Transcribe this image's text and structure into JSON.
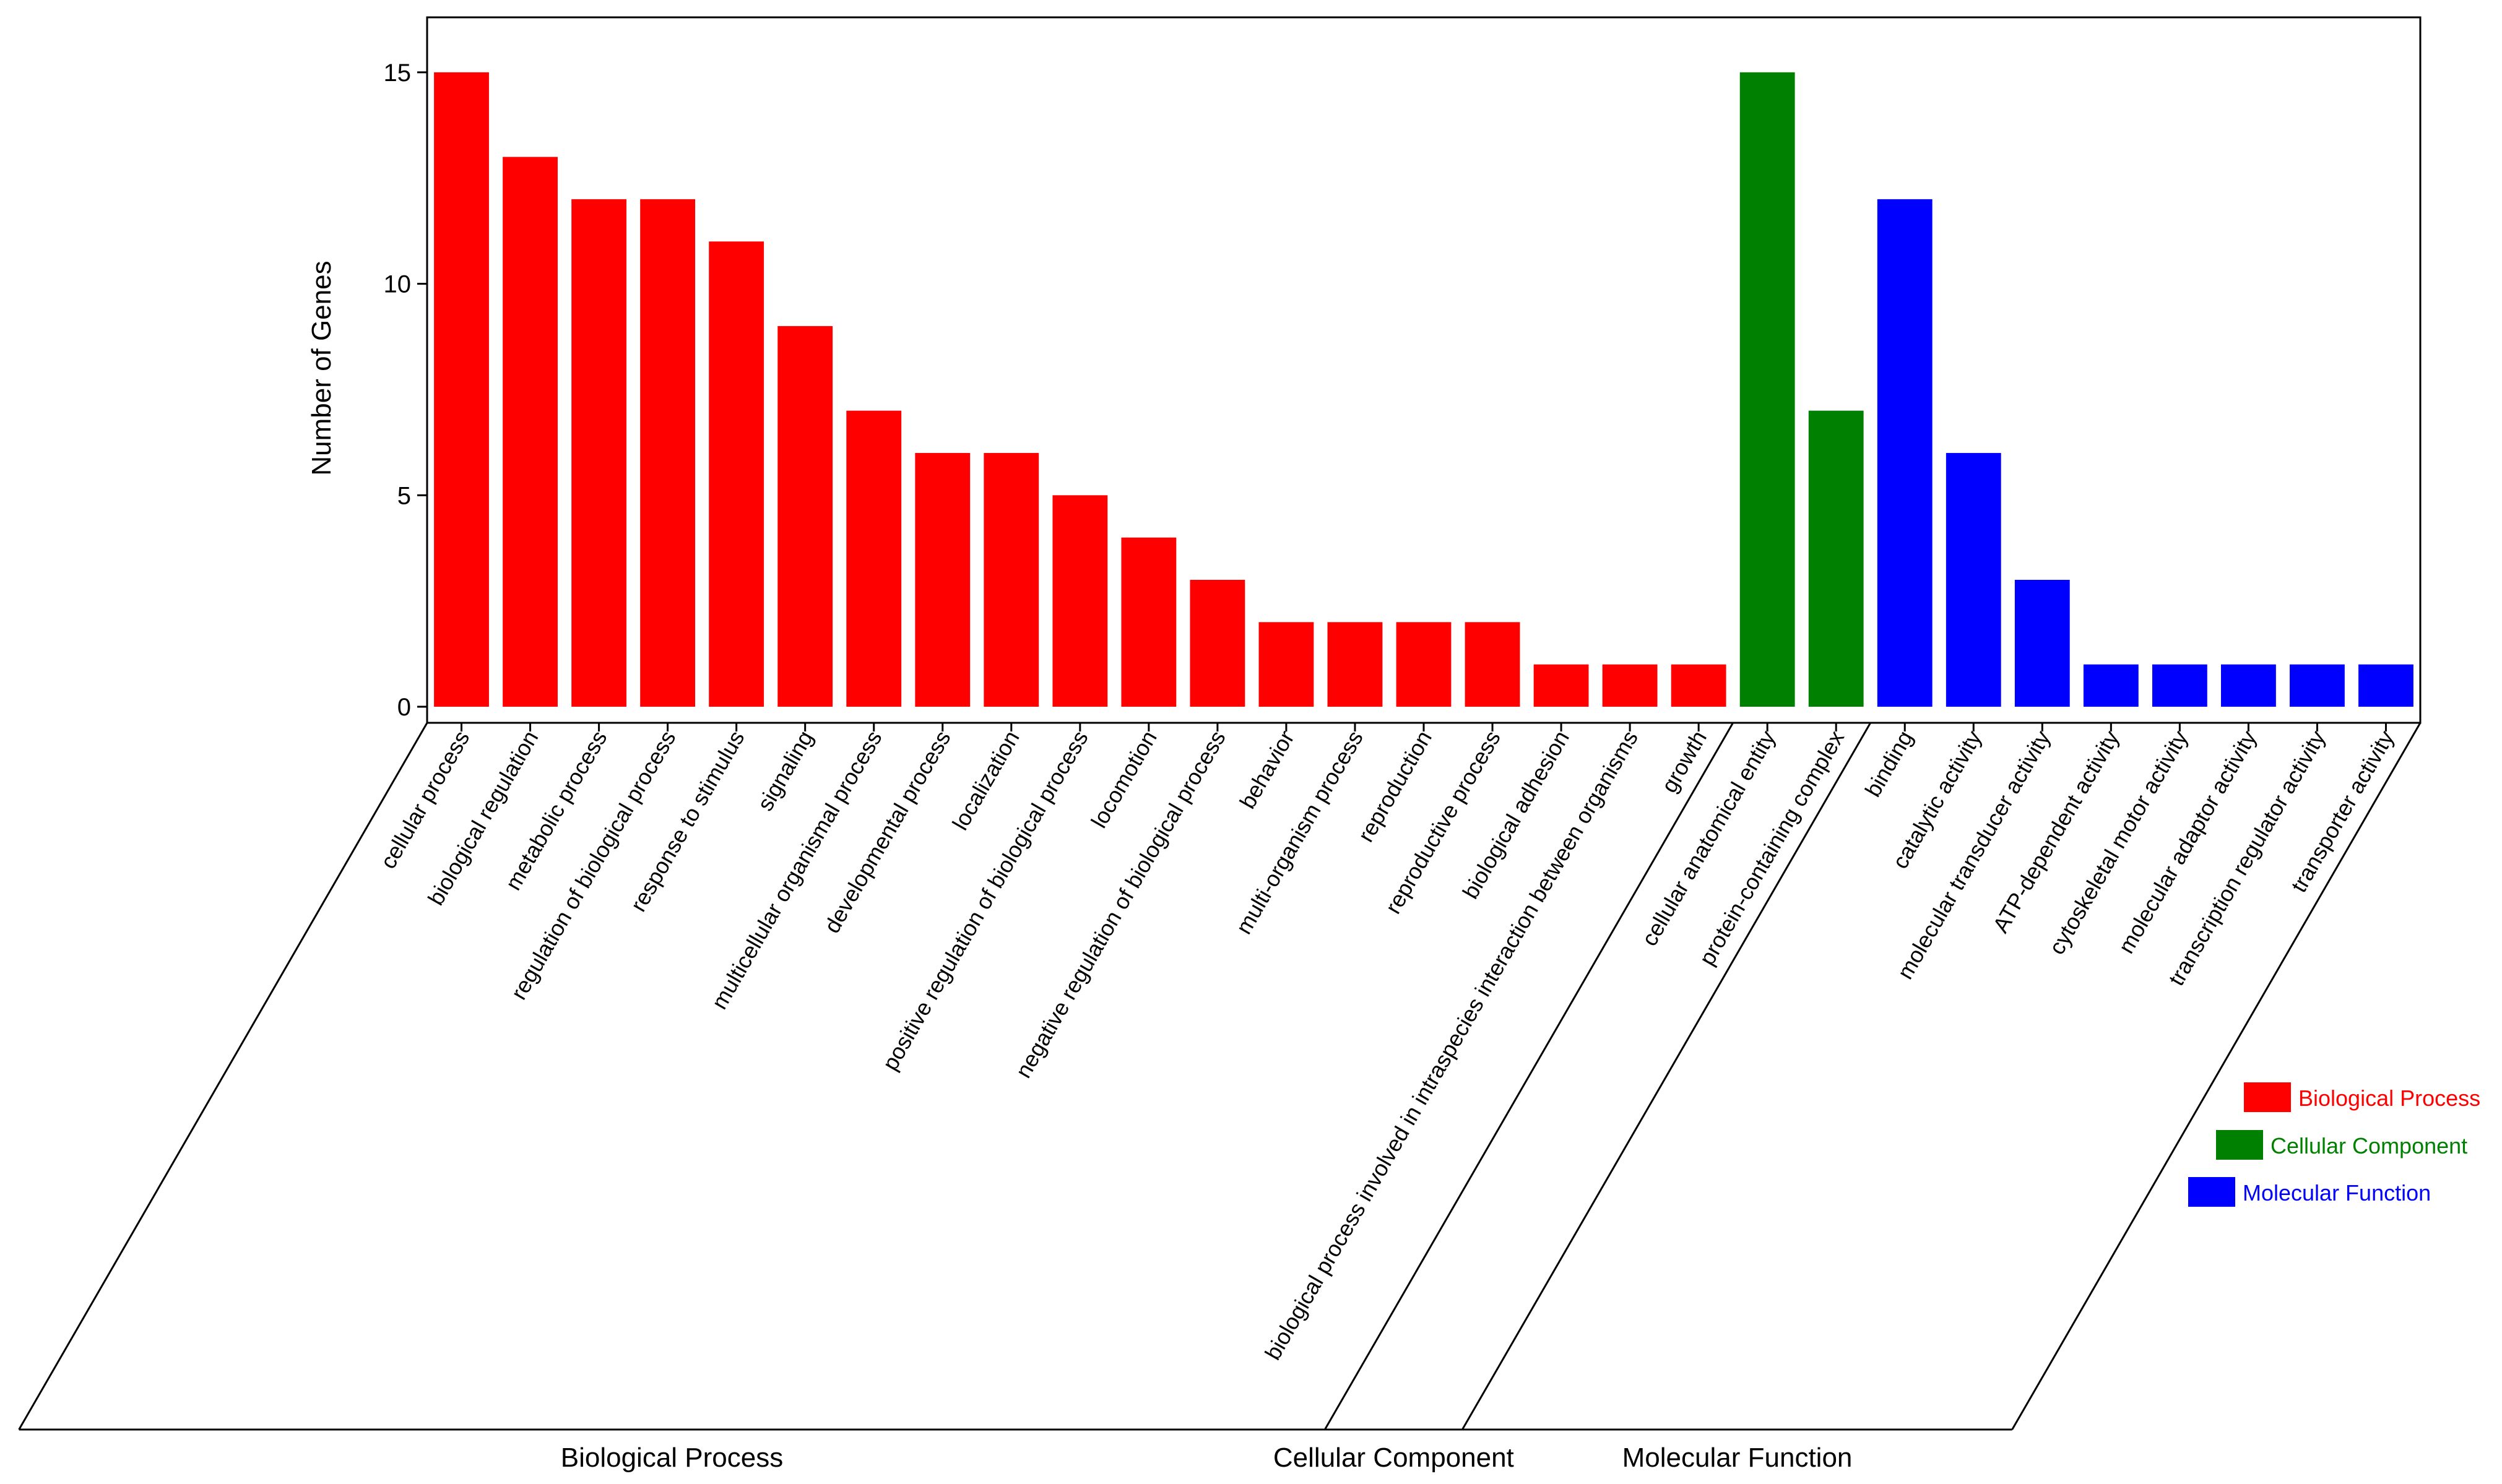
{
  "colors": {
    "biological_process": "#ff0000",
    "cellular_component": "#008000",
    "molecular_function": "#0000ff"
  },
  "chart_data": {
    "type": "bar",
    "title": "",
    "xlabel": "",
    "ylabel": "Number of Genes",
    "ylim": [
      0,
      16.3
    ],
    "yticks": [
      0,
      5,
      10,
      15
    ],
    "grid": false,
    "legend_position": "right",
    "categories": [
      "cellular process",
      "biological regulation",
      "metabolic process",
      "regulation of biological process",
      "response to stimulus",
      "signaling",
      "multicellular organismal process",
      "developmental process",
      "localization",
      "positive regulation of biological process",
      "locomotion",
      "negative regulation of biological process",
      "behavior",
      "multi-organism process",
      "reproduction",
      "reproductive process",
      "biological adhesion",
      "biological process involved in intraspecies interaction between organisms",
      "growth",
      "cellular anatomical entity",
      "protein-containing complex",
      "binding",
      "catalytic activity",
      "molecular transducer activity",
      "ATP-dependent activity",
      "cytoskeletal motor activity",
      "molecular adaptor activity",
      "transcription regulator activity",
      "transporter activity"
    ],
    "values": [
      15,
      13,
      12,
      12,
      11,
      9,
      7,
      6,
      6,
      5,
      4,
      3,
      2,
      2,
      2,
      2,
      1,
      1,
      1,
      15,
      7,
      12,
      6,
      3,
      1,
      1,
      1,
      1,
      1
    ],
    "groups": [
      {
        "name": "Biological Process",
        "key": "biological_process",
        "start": 0,
        "end": 18
      },
      {
        "name": "Cellular Component",
        "key": "cellular_component",
        "start": 19,
        "end": 20
      },
      {
        "name": "Molecular Function",
        "key": "molecular_function",
        "start": 21,
        "end": 28
      }
    ],
    "legend": [
      "Biological Process",
      "Cellular Component",
      "Molecular Function"
    ]
  }
}
